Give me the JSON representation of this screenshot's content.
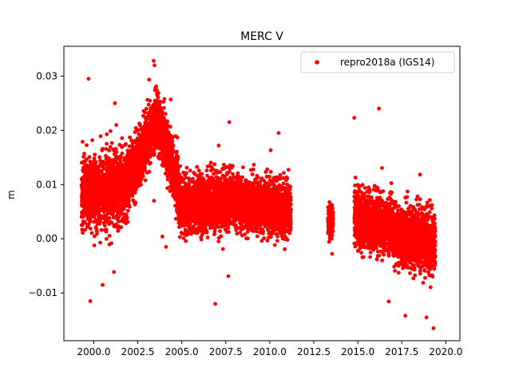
{
  "chart_data": {
    "type": "scatter",
    "title": "MERC V",
    "xlabel": "",
    "ylabel": "m",
    "xlim": [
      1998.3,
      2020.8
    ],
    "ylim": [
      -0.0188,
      0.0355
    ],
    "xticks": [
      2000.0,
      2002.5,
      2005.0,
      2007.5,
      2010.0,
      2012.5,
      2015.0,
      2017.5,
      2020.0
    ],
    "xtick_labels": [
      "2000.0",
      "2002.5",
      "2005.0",
      "2007.5",
      "2010.0",
      "2012.5",
      "2015.0",
      "2017.5",
      "2020.0"
    ],
    "yticks": [
      -0.01,
      0.0,
      0.01,
      0.02,
      0.03
    ],
    "ytick_labels": [
      "−0.01",
      "0.00",
      "0.01",
      "0.02",
      "0.03"
    ],
    "grid": false,
    "legend": {
      "placement": "top-right"
    },
    "series": [
      {
        "name": "repro2018a (IGS14)",
        "color": "#ff0000",
        "marker": "circle",
        "segments": [
          {
            "x_start": 1999.3,
            "x_end": 2002.0,
            "center": [
              0.008,
              0.01
            ],
            "spread": 0.0055
          },
          {
            "x_start": 2002.0,
            "x_end": 2003.6,
            "center": [
              0.011,
              0.022
            ],
            "spread": 0.0045
          },
          {
            "x_start": 2003.6,
            "x_end": 2004.8,
            "center": [
              0.022,
              0.01
            ],
            "spread": 0.0045
          },
          {
            "x_start": 2004.8,
            "x_end": 2008.0,
            "center": [
              0.006,
              0.007
            ],
            "spread": 0.0045
          },
          {
            "x_start": 2008.0,
            "x_end": 2011.2,
            "center": [
              0.007,
              0.005
            ],
            "spread": 0.0042
          },
          {
            "x_start": 2013.3,
            "x_end": 2013.6,
            "center": [
              0.003,
              0.003
            ],
            "spread": 0.003
          },
          {
            "x_start": 2014.8,
            "x_end": 2017.0,
            "center": [
              0.004,
              0.002
            ],
            "spread": 0.0045
          },
          {
            "x_start": 2017.0,
            "x_end": 2019.4,
            "center": [
              0.001,
              -0.001
            ],
            "spread": 0.0048
          }
        ],
        "outliers": [
          [
            1999.7,
            0.0295
          ],
          [
            2003.4,
            0.0328
          ],
          [
            2003.45,
            0.032
          ],
          [
            2016.2,
            0.024
          ],
          [
            2014.8,
            0.0223
          ],
          [
            2007.7,
            0.0215
          ],
          [
            2010.5,
            0.0195
          ],
          [
            2001.2,
            0.025
          ],
          [
            1999.8,
            -0.0115
          ],
          [
            2006.9,
            -0.012
          ],
          [
            2019.3,
            -0.0165
          ],
          [
            2018.9,
            -0.0145
          ],
          [
            2017.7,
            -0.0142
          ],
          [
            2000.5,
            -0.0085
          ],
          [
            2003.9,
            0.0004
          ],
          [
            2004.1,
            -0.0015
          ]
        ]
      }
    ]
  }
}
